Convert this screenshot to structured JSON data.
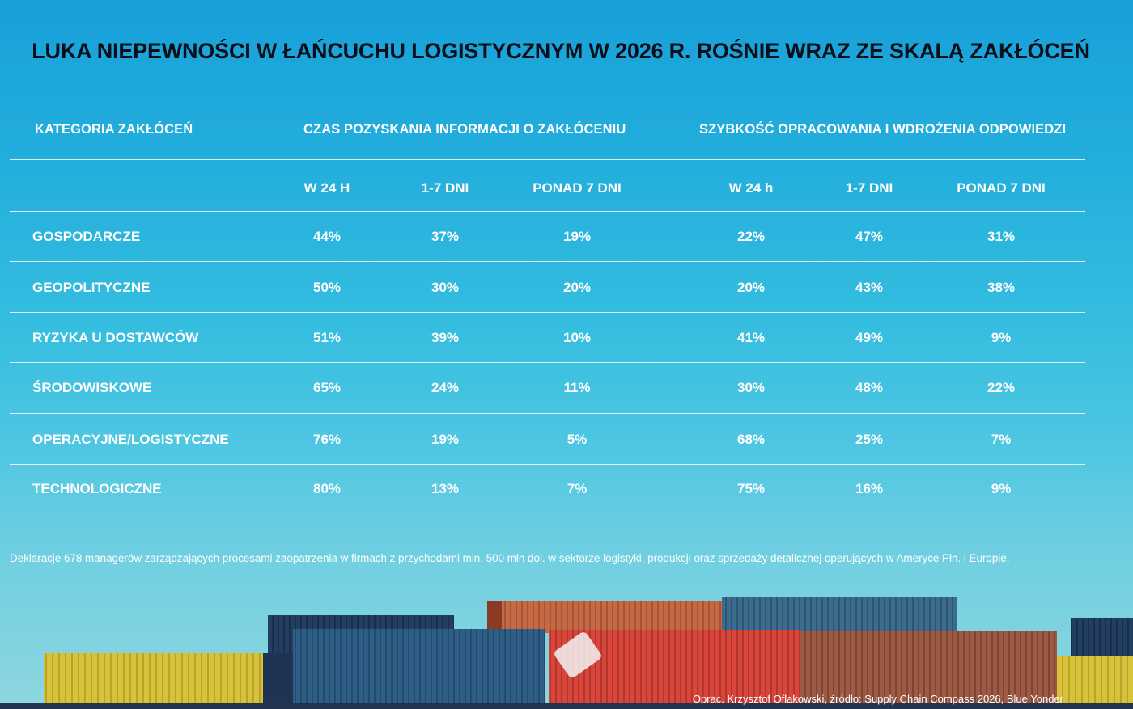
{
  "title": "LUKA NIEPEWNOŚCI W ŁAŃCUCHU LOGISTYCZNYM W 2026 R. ROŚNIE WRAZ ZE SKALĄ ZAKŁÓCEŃ",
  "header": {
    "category": "KATEGORIA ZAKŁÓCEŃ",
    "group1": "CZAS POZYSKANIA INFORMACJI O ZAKŁÓCENIU",
    "group2": "SZYBKOŚĆ OPRACOWANIA  I WDROŻENIA ODPOWIEDZI"
  },
  "subheaders": [
    "W 24 H",
    "1-7 DNI",
    "PONAD 7 DNI",
    "W 24 h",
    "1-7 DNI",
    "PONAD 7 DNI"
  ],
  "rows": [
    {
      "label": "GOSPODARCZE",
      "values": [
        "44%",
        "37%",
        "19%",
        "22%",
        "47%",
        "31%"
      ]
    },
    {
      "label": "GEOPOLITYCZNE",
      "values": [
        "50%",
        "30%",
        "20%",
        "20%",
        "43%",
        "38%"
      ]
    },
    {
      "label": "RYZYKA U DOSTAWCÓW",
      "values": [
        "51%",
        "39%",
        "10%",
        "41%",
        "49%",
        "9%"
      ]
    },
    {
      "label": "ŚRODOWISKOWE",
      "values": [
        "65%",
        "24%",
        "11%",
        "30%",
        "48%",
        "22%"
      ]
    },
    {
      "label": "OPERACYJNE/LOGISTYCZNE",
      "values": [
        "76%",
        "19%",
        "5%",
        "68%",
        "25%",
        "7%"
      ]
    },
    {
      "label": "TECHNOLOGICZNE",
      "values": [
        "80%",
        "13%",
        "7%",
        "75%",
        "16%",
        "9%"
      ]
    }
  ],
  "footnote": "Deklaracje 678 managerów zarządzających procesami zaopatrzenia w firmach z przychodami min. 500 mln dol. w sektorze logistyki, produkcji oraz sprzedaży detalicznej operujących w Ameryce Płn. i Europie.",
  "credit": "Oprac. Krzysztof Oflakowski, źródło: Supply Chain Compass 2026, Blue Yonder",
  "chart_data": {
    "type": "table",
    "title": "LUKA NIEPEWNOŚCI W ŁAŃCUCHU LOGISTYCZNYM W 2026 R. ROŚNIE WRAZ ZE SKALĄ ZAKŁÓCEŃ",
    "column_groups": [
      {
        "name": "CZAS POZYSKANIA INFORMACJI O ZAKŁÓCENIU",
        "columns": [
          "W 24 H",
          "1-7 DNI",
          "PONAD 7 DNI"
        ]
      },
      {
        "name": "SZYBKOŚĆ OPRACOWANIA  I WDROŻENIA ODPOWIEDZI",
        "columns": [
          "W 24 h",
          "1-7 DNI",
          "PONAD 7 DNI"
        ]
      }
    ],
    "row_header": "KATEGORIA ZAKŁÓCEŃ",
    "categories": [
      "GOSPODARCZE",
      "GEOPOLITYCZNE",
      "RYZYKA U DOSTAWCÓW",
      "ŚRODOWISKOWE",
      "OPERACYJNE/LOGISTYCZNE",
      "TECHNOLOGICZNE"
    ],
    "values": [
      [
        44,
        37,
        19,
        22,
        47,
        31
      ],
      [
        50,
        30,
        20,
        20,
        43,
        38
      ],
      [
        51,
        39,
        10,
        41,
        49,
        9
      ],
      [
        65,
        24,
        11,
        30,
        48,
        22
      ],
      [
        76,
        19,
        5,
        68,
        25,
        7
      ],
      [
        80,
        13,
        7,
        75,
        16,
        9
      ]
    ],
    "unit": "%"
  },
  "colors": {
    "title": "#0a0f1a",
    "text": "#ffffff",
    "sky_top": "#17a0d9",
    "sky_bottom": "#8ed6df"
  }
}
